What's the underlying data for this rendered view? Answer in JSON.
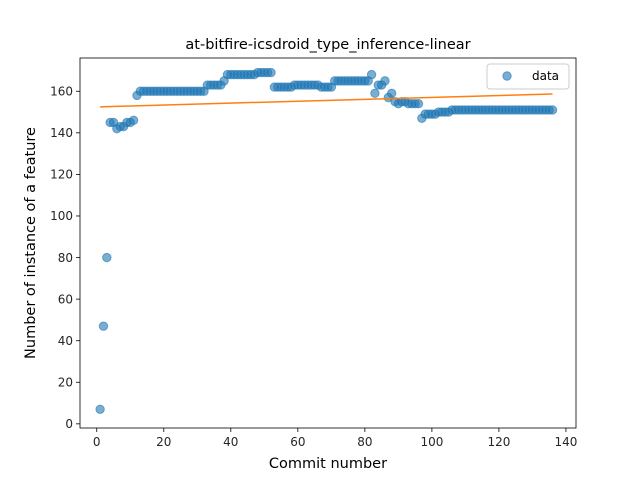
{
  "chart_data": {
    "type": "scatter",
    "title": "at-bitfire-icsdroid_type_inference-linear",
    "xlabel": "Commit number",
    "ylabel": "Number of instance of a feature",
    "xlim": [
      -5,
      143
    ],
    "ylim": [
      -2,
      176
    ],
    "xticks": [
      0,
      20,
      40,
      60,
      80,
      100,
      120,
      140
    ],
    "yticks": [
      0,
      20,
      40,
      60,
      80,
      100,
      120,
      140,
      160
    ],
    "grid": false,
    "legend": {
      "position": "top-right",
      "entries": [
        "data"
      ]
    },
    "colors": {
      "data": "#1f77b4",
      "fit": "#ff7f0e"
    },
    "series": [
      {
        "name": "data",
        "kind": "scatter",
        "x": [
          1,
          2,
          3,
          4,
          5,
          6,
          7,
          8,
          9,
          10,
          11,
          12,
          13,
          14,
          15,
          16,
          17,
          18,
          19,
          20,
          21,
          22,
          23,
          24,
          25,
          26,
          27,
          28,
          29,
          30,
          31,
          32,
          33,
          34,
          35,
          36,
          37,
          38,
          39,
          40,
          41,
          42,
          43,
          44,
          45,
          46,
          47,
          48,
          49,
          50,
          51,
          52,
          53,
          54,
          55,
          56,
          57,
          58,
          59,
          60,
          61,
          62,
          63,
          64,
          65,
          66,
          67,
          68,
          69,
          70,
          71,
          72,
          73,
          74,
          75,
          76,
          77,
          78,
          79,
          80,
          81,
          82,
          83,
          84,
          85,
          86,
          87,
          88,
          89,
          90,
          91,
          92,
          93,
          94,
          95,
          96,
          97,
          98,
          99,
          100,
          101,
          102,
          103,
          104,
          105,
          106,
          107,
          108,
          109,
          110,
          111,
          112,
          113,
          114,
          115,
          116,
          117,
          118,
          119,
          120,
          121,
          122,
          123,
          124,
          125,
          126,
          127,
          128,
          129,
          130,
          131,
          132,
          133,
          134,
          135,
          136
        ],
        "y": [
          7,
          47,
          80,
          145,
          145,
          142,
          143,
          143,
          145,
          145,
          146,
          158,
          160,
          160,
          160,
          160,
          160,
          160,
          160,
          160,
          160,
          160,
          160,
          160,
          160,
          160,
          160,
          160,
          160,
          160,
          160,
          160,
          163,
          163,
          163,
          163,
          163,
          165,
          168,
          168,
          168,
          168,
          168,
          168,
          168,
          168,
          168,
          169,
          169,
          169,
          169,
          169,
          162,
          162,
          162,
          162,
          162,
          162,
          163,
          163,
          163,
          163,
          163,
          163,
          163,
          163,
          162,
          162,
          162,
          162,
          165,
          165,
          165,
          165,
          165,
          165,
          165,
          165,
          165,
          165,
          165,
          168,
          159,
          163,
          163,
          165,
          157,
          159,
          155,
          154,
          155,
          155,
          154,
          154,
          154,
          154,
          147,
          149,
          149,
          149,
          149,
          150,
          150,
          150,
          150,
          151,
          151,
          151,
          151,
          151,
          151,
          151,
          151,
          151,
          151,
          151,
          151,
          151,
          151,
          151,
          151,
          151,
          151,
          151,
          151,
          151,
          151,
          151,
          151,
          151,
          151,
          151,
          151,
          151,
          151,
          151
        ]
      },
      {
        "name": "",
        "kind": "line",
        "x": [
          1,
          136
        ],
        "y": [
          152.5,
          158.7
        ]
      }
    ]
  }
}
